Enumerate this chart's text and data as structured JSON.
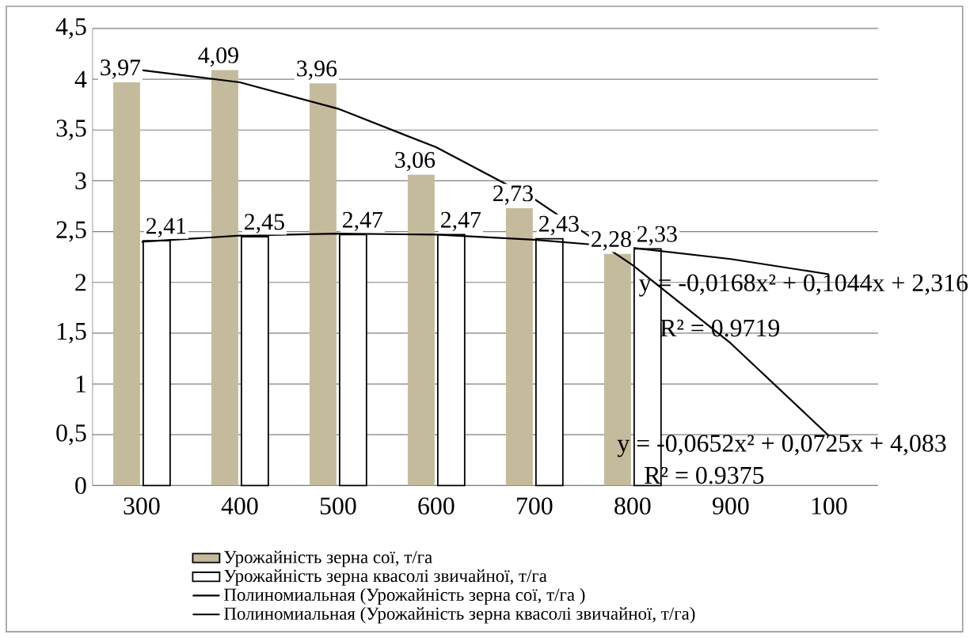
{
  "chart_data": {
    "type": "bar",
    "categories": [
      "300",
      "400",
      "500",
      "600",
      "700",
      "800",
      "900",
      "100"
    ],
    "series": [
      {
        "name": "Урожайність зерна сої, т/га",
        "color": "#c4bb9c",
        "values": [
          3.97,
          4.09,
          3.96,
          3.06,
          2.73,
          2.28,
          null,
          null
        ],
        "value_labels": [
          "3,97",
          "4,09",
          "3,96",
          "3,06",
          "2,73",
          "2,28",
          null,
          null
        ]
      },
      {
        "name": "Урожайність зерна квасолі звичайної, т/га",
        "color": "#ffffff",
        "values": [
          2.41,
          2.45,
          2.47,
          2.47,
          2.43,
          2.33,
          null,
          null
        ],
        "value_labels": [
          "2,41",
          "2,45",
          "2,47",
          "2,47",
          "2,43",
          "2,33",
          null,
          null
        ]
      },
      {
        "name": "Полиномиальная (Урожайність зерна сої, т/га )",
        "type": "line",
        "color": "#000000",
        "values": [
          4.09,
          3.97,
          3.71,
          3.33,
          2.82,
          2.17,
          1.4,
          0.49
        ]
      },
      {
        "name": "Полиномиальная (Урожайність зерна квасолі звичайної, т/га)",
        "type": "line",
        "color": "#000000",
        "values": [
          2.4,
          2.46,
          2.48,
          2.47,
          2.42,
          2.34,
          2.23,
          2.08
        ]
      }
    ],
    "ylim": [
      0,
      4.5
    ],
    "yticks": [
      0,
      {
        "value": 0.5,
        "label": "0,5"
      },
      1,
      {
        "value": 1.5,
        "label": "1,5"
      },
      2,
      {
        "value": 2.5,
        "label": "2,5"
      },
      3,
      {
        "value": 3.5,
        "label": "3,5"
      },
      4,
      {
        "value": 4.5,
        "label": "4,5"
      }
    ],
    "grid": "y",
    "legend": "bottom",
    "annotations": [
      "y = -0,0168x² + 0,1044x + 2,316",
      "R² = 0.9719",
      "y = -0,0652x² + 0,0725x + 4,083",
      "R² = 0.9375"
    ]
  }
}
